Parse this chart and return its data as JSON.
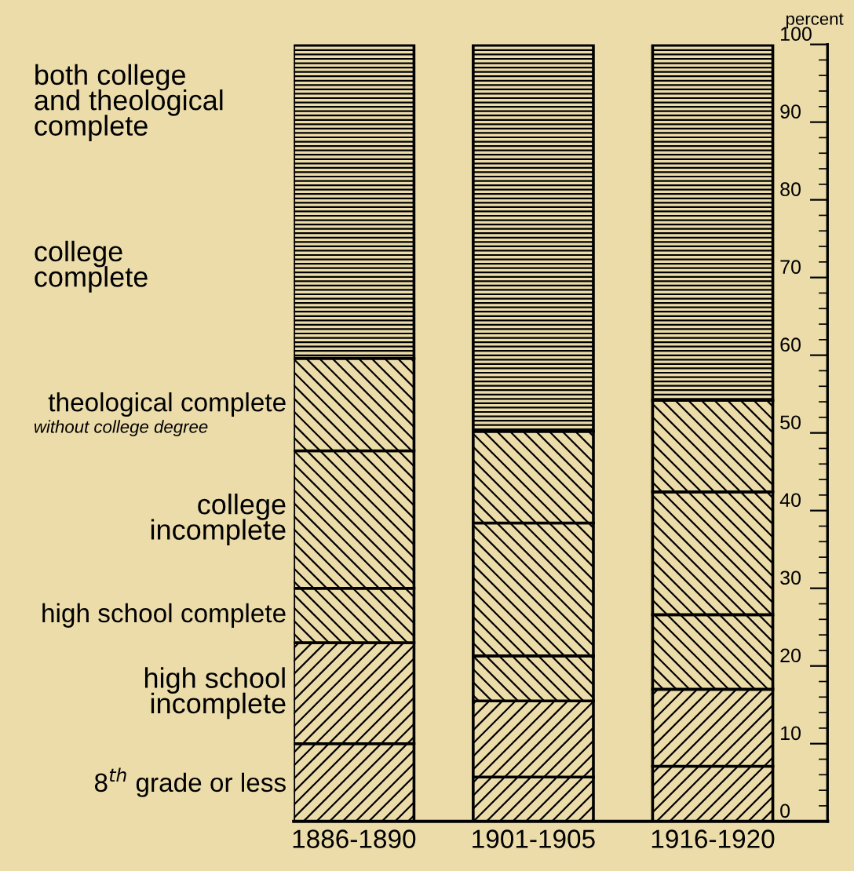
{
  "chart_data": {
    "type": "bar",
    "stacked": true,
    "categories": [
      "1886-1890",
      "1901-1905",
      "1916-1920"
    ],
    "ylabel": "percent",
    "ylim": [
      0,
      100
    ],
    "yticks": [
      0,
      10,
      20,
      30,
      40,
      50,
      60,
      70,
      80,
      90,
      100
    ],
    "series": [
      {
        "name": "8$^{th}$ grade or less",
        "color": "#000000",
        "values": [
          10,
          5.7,
          7.1
        ]
      },
      {
        "name": "high school\nincomplete",
        "color": "#000000",
        "values": [
          13,
          9.8,
          9.9
        ]
      },
      {
        "name": "high school complete",
        "color": "#000000",
        "values": [
          7,
          5.8,
          9.6
        ]
      },
      {
        "name": "college\nincomplete",
        "color": "#000000",
        "values": [
          17.7,
          17.1,
          15.8
        ]
      },
      {
        "name": "theological complete",
        "color": "#000000",
        "values": [
          11.9,
          11.8,
          11.8
        ]
      },
      {
        "color": "#000000",
        "values": [
          40.4,
          49.8,
          45.8
        ]
      }
    ],
    "annotations": [
      "without college degree",
      "college\ncomplete",
      "both college\nand theological\ncomplete"
    ],
    "legend": false,
    "grid": false
  }
}
